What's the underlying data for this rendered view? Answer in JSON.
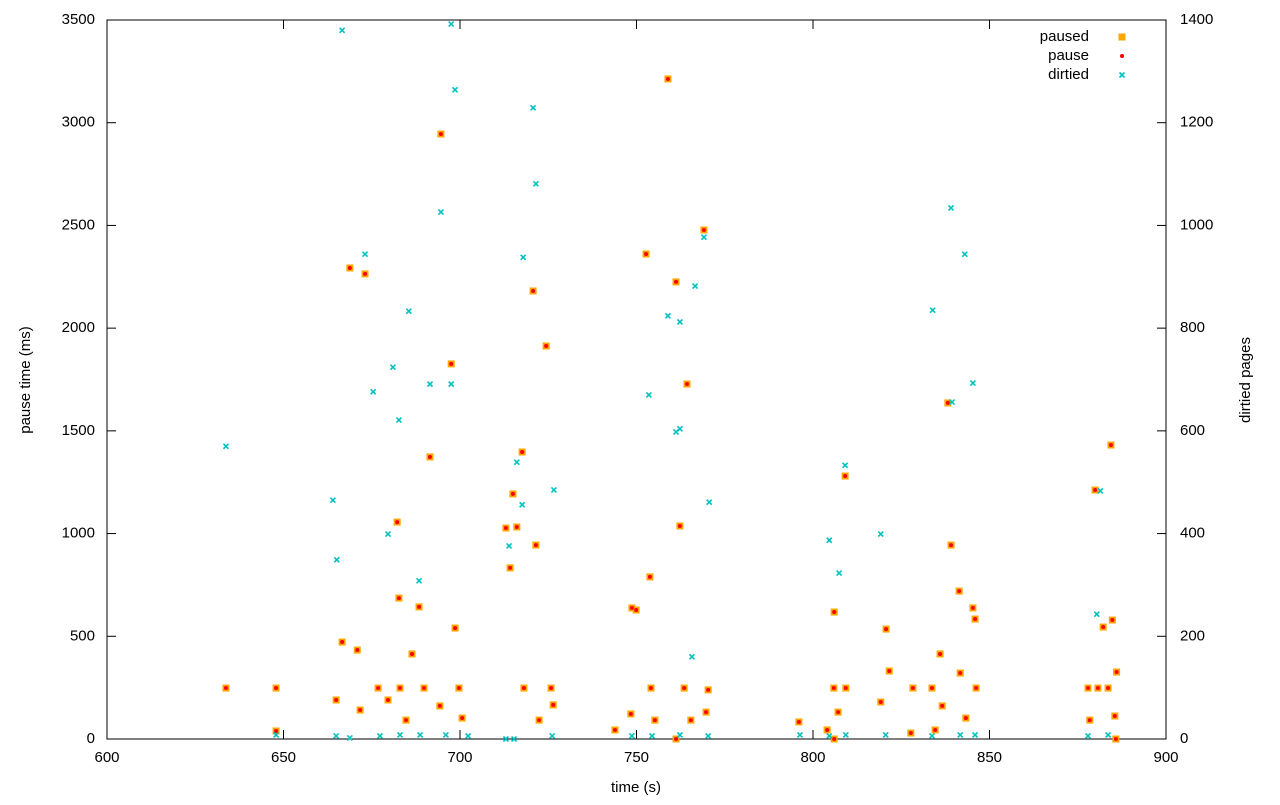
{
  "chart_data": {
    "type": "scatter",
    "xlabel": "time (s)",
    "ylabel": "pause time (ms)",
    "y2label": "dirtied pages",
    "xlim": [
      600,
      900
    ],
    "xticks": [
      600,
      650,
      700,
      750,
      800,
      850,
      900
    ],
    "ylim": [
      0,
      3500
    ],
    "yticks": [
      0,
      500,
      1000,
      1500,
      2000,
      2500,
      3000,
      3500
    ],
    "y2lim": [
      0,
      1400
    ],
    "y2ticks": [
      0,
      200,
      400,
      600,
      800,
      1000,
      1200,
      1400
    ],
    "grid": false,
    "legend": "top-right",
    "series": [
      {
        "name": "paused",
        "color": "#ffa500",
        "marker": "square",
        "axis": "y",
        "x": [
          633.7,
          647.9,
          647.9,
          758.9,
          694.6,
          769.1,
          752.7,
          668.8,
          673.1,
          761.2,
          720.7,
          724.4,
          697.5,
          764.3,
          838.2,
          884.4,
          717.6,
          691.5,
          809.1,
          879.9,
          715.0,
          682.2,
          713.0,
          716.1,
          762.3,
          721.5,
          839.1,
          714.2,
          753.8,
          682.7,
          841.4,
          688.4,
          748.7,
          749.9,
          845.3,
          845.9,
          806.0,
          698.6,
          820.7,
          882.2,
          884.8,
          666.6,
          670.9,
          686.4,
          836.0,
          821.6,
          886.0,
          841.7,
          676.8,
          683.0,
          689.8,
          699.7,
          718.1,
          725.8,
          754.1,
          763.5,
          770.3,
          805.9,
          809.3,
          828.3,
          833.7,
          846.2,
          877.9,
          880.7,
          883.6,
          664.9,
          671.7,
          679.6,
          684.7,
          694.3,
          700.6,
          722.4,
          726.4,
          748.4,
          755.2,
          765.4,
          769.7,
          796.0,
          804.0,
          807.1,
          819.2,
          834.6,
          836.6,
          843.3,
          878.4,
          885.5,
          743.9,
          827.7,
          761.2,
          806.0,
          885.8
        ],
        "values": [
          248,
          248,
          39,
          3213,
          2945,
          2478,
          2361,
          2293,
          2264,
          2225,
          2181,
          1913,
          1826,
          1728,
          1636,
          1431,
          1397,
          1373,
          1280,
          1212,
          1193,
          1056,
          1027,
          1032,
          1037,
          944,
          944,
          833,
          789,
          686,
          720,
          643,
          638,
          628,
          638,
          584,
          618,
          540,
          535,
          545,
          579,
          472,
          433,
          414,
          414,
          331,
          326,
          321,
          248,
          248,
          248,
          248,
          248,
          248,
          248,
          248,
          239,
          248,
          248,
          248,
          248,
          248,
          248,
          248,
          248,
          190,
          141,
          190,
          92,
          161,
          102,
          92,
          166,
          122,
          92,
          92,
          131,
          83,
          44,
          131,
          180,
          44,
          161,
          102,
          92,
          112,
          44,
          29,
          0,
          0,
          0
        ]
      },
      {
        "name": "pause",
        "color": "#ff0000",
        "marker": "dot",
        "axis": "y",
        "x": [
          633.7,
          647.9,
          647.9,
          758.9,
          694.6,
          769.1,
          752.7,
          668.8,
          673.1,
          761.2,
          720.7,
          724.4,
          697.5,
          764.3,
          838.2,
          884.4,
          717.6,
          691.5,
          809.1,
          879.9,
          715.0,
          682.2,
          713.0,
          716.1,
          762.3,
          721.5,
          839.1,
          714.2,
          753.8,
          682.7,
          841.4,
          688.4,
          748.7,
          749.9,
          845.3,
          845.9,
          806.0,
          698.6,
          820.7,
          882.2,
          884.8,
          666.6,
          670.9,
          686.4,
          836.0,
          821.6,
          886.0,
          841.7,
          676.8,
          683.0,
          689.8,
          699.7,
          718.1,
          725.8,
          754.1,
          763.5,
          770.3,
          805.9,
          809.3,
          828.3,
          833.7,
          846.2,
          877.9,
          880.7,
          883.6,
          664.9,
          671.7,
          679.6,
          684.7,
          694.3,
          700.6,
          722.4,
          726.4,
          748.4,
          755.2,
          765.4,
          769.7,
          796.0,
          804.0,
          807.1,
          819.2,
          834.6,
          836.6,
          843.3,
          878.4,
          885.5,
          743.9,
          827.7,
          761.2,
          806.0,
          885.8
        ],
        "values": [
          248,
          248,
          39,
          3213,
          2945,
          2478,
          2361,
          2293,
          2264,
          2225,
          2181,
          1913,
          1826,
          1728,
          1636,
          1431,
          1397,
          1373,
          1280,
          1212,
          1193,
          1056,
          1027,
          1032,
          1037,
          944,
          944,
          833,
          789,
          686,
          720,
          643,
          638,
          628,
          638,
          584,
          618,
          540,
          535,
          545,
          579,
          472,
          433,
          414,
          414,
          331,
          326,
          321,
          248,
          248,
          248,
          248,
          248,
          248,
          248,
          248,
          239,
          248,
          248,
          248,
          248,
          248,
          248,
          248,
          248,
          190,
          141,
          190,
          92,
          161,
          102,
          92,
          166,
          122,
          92,
          92,
          131,
          83,
          44,
          131,
          180,
          44,
          161,
          102,
          92,
          112,
          44,
          29,
          0,
          0,
          0
        ]
      },
      {
        "name": "dirtied",
        "color": "#00c0c0",
        "marker": "cross",
        "axis": "y2",
        "x": [
          633.7,
          666.6,
          697.5,
          698.6,
          720.7,
          721.5,
          694.6,
          839.1,
          769.1,
          673.1,
          717.9,
          843.0,
          766.6,
          685.5,
          758.9,
          762.3,
          833.9,
          681.0,
          691.5,
          697.5,
          675.4,
          753.5,
          845.3,
          682.7,
          761.2,
          762.3,
          839.4,
          809.1,
          716.1,
          726.6,
          881.4,
          664.0,
          717.6,
          770.6,
          713.9,
          679.6,
          804.6,
          819.2,
          665.1,
          807.4,
          688.4,
          880.4,
          765.7,
          647.9,
          664.9,
          668.8,
          677.3,
          683.0,
          688.7,
          696.0,
          702.3,
          713.0,
          715.3,
          726.1,
          748.7,
          754.4,
          762.3,
          770.3,
          796.3,
          804.6,
          809.3,
          820.6,
          833.7,
          841.7,
          845.9,
          877.9,
          883.6
        ],
        "values": [
          570,
          1380,
          1392,
          1264,
          1229,
          1081,
          1026,
          1034,
          977,
          944,
          938,
          944,
          882,
          833,
          824,
          812,
          835,
          724,
          691,
          691,
          676,
          670,
          693,
          621,
          598,
          604,
          656,
          533,
          539,
          485,
          483,
          465,
          456,
          461,
          376,
          399,
          387,
          399,
          349,
          323,
          308,
          243,
          160,
          8,
          6,
          2,
          6,
          8,
          8,
          8,
          6,
          0,
          0,
          6,
          6,
          6,
          8,
          6,
          8,
          6,
          8,
          8,
          6,
          8,
          8,
          6,
          8
        ]
      }
    ]
  }
}
